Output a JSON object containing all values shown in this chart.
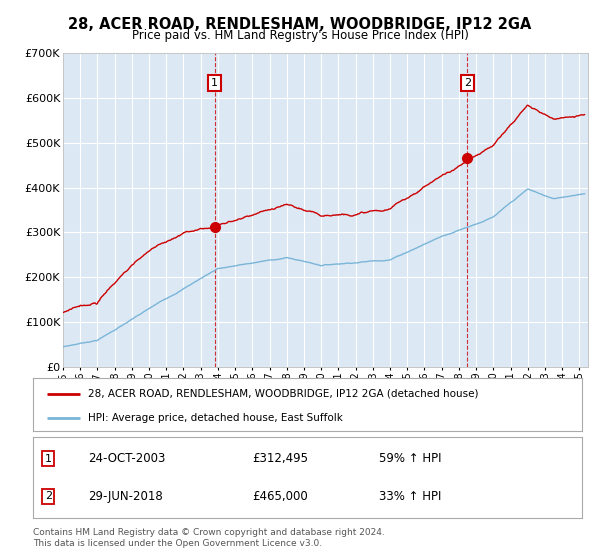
{
  "title": "28, ACER ROAD, RENDLESHAM, WOODBRIDGE, IP12 2GA",
  "subtitle": "Price paid vs. HM Land Registry's House Price Index (HPI)",
  "legend_line1": "28, ACER ROAD, RENDLESHAM, WOODBRIDGE, IP12 2GA (detached house)",
  "legend_line2": "HPI: Average price, detached house, East Suffolk",
  "annotation1": {
    "label": "1",
    "date": "24-OCT-2003",
    "price": "£312,495",
    "pct": "59% ↑ HPI"
  },
  "annotation2": {
    "label": "2",
    "date": "29-JUN-2018",
    "price": "£465,000",
    "pct": "33% ↑ HPI"
  },
  "footer": "Contains HM Land Registry data © Crown copyright and database right 2024.\nThis data is licensed under the Open Government Licence v3.0.",
  "sale1_year": 2003.81,
  "sale1_price": 312495,
  "sale2_year": 2018.49,
  "sale2_price": 465000,
  "hpi_color": "#7ab5d8",
  "price_color": "#cc0000",
  "bg_color": "#dce9f5",
  "grid_color": "#ffffff",
  "annotation_box_color": "#cc0000",
  "ylim": [
    0,
    700000
  ],
  "xlim_start": 1995,
  "xlim_end": 2025.5,
  "yticks": [
    0,
    100000,
    200000,
    300000,
    400000,
    500000,
    600000,
    700000
  ],
  "ytick_labels": [
    "£0",
    "£100K",
    "£200K",
    "£300K",
    "£400K",
    "£500K",
    "£600K",
    "£700K"
  ]
}
